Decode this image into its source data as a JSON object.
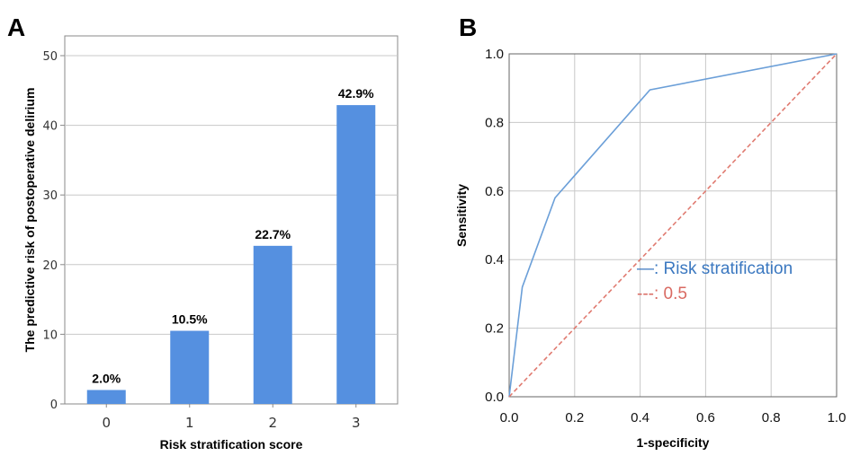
{
  "chart_data": [
    {
      "panel": "A",
      "type": "bar",
      "categories": [
        "0",
        "1",
        "2",
        "3"
      ],
      "values": [
        2.0,
        10.5,
        22.7,
        42.9
      ],
      "data_labels": [
        "2.0%",
        "10.5%",
        "22.7%",
        "42.9%"
      ],
      "xlabel": "Risk stratification score",
      "ylabel": "The predictive risk of postoperative delirium",
      "ylim": [
        0,
        50
      ],
      "yticks": [
        "0",
        "10",
        "20",
        "30",
        "40",
        "50"
      ],
      "grid": true,
      "bar_color": "#5590e0"
    },
    {
      "panel": "B",
      "type": "line",
      "xlabel": "1-specificity",
      "ylabel": "Sensitivity",
      "xlim": [
        0,
        1
      ],
      "ylim": [
        0,
        1
      ],
      "xticks": [
        "0.0",
        "0.2",
        "0.4",
        "0.6",
        "0.8",
        "1.0"
      ],
      "yticks": [
        "0.0",
        "0.2",
        "0.4",
        "0.6",
        "0.8",
        "1.0"
      ],
      "grid": true,
      "legend_position": "middle-right",
      "series": [
        {
          "name": "Risk stratification",
          "legend_label": "—: Risk stratification",
          "color": "#6b9fd8",
          "style": "solid",
          "x": [
            0,
            0.04,
            0.14,
            0.43,
            1.0
          ],
          "y": [
            0,
            0.32,
            0.58,
            0.895,
            1.0
          ]
        },
        {
          "name": "0.5",
          "legend_label": "---: 0.5",
          "color": "#e07a70",
          "style": "dashed",
          "x": [
            0,
            1
          ],
          "y": [
            0,
            1
          ]
        }
      ]
    }
  ]
}
